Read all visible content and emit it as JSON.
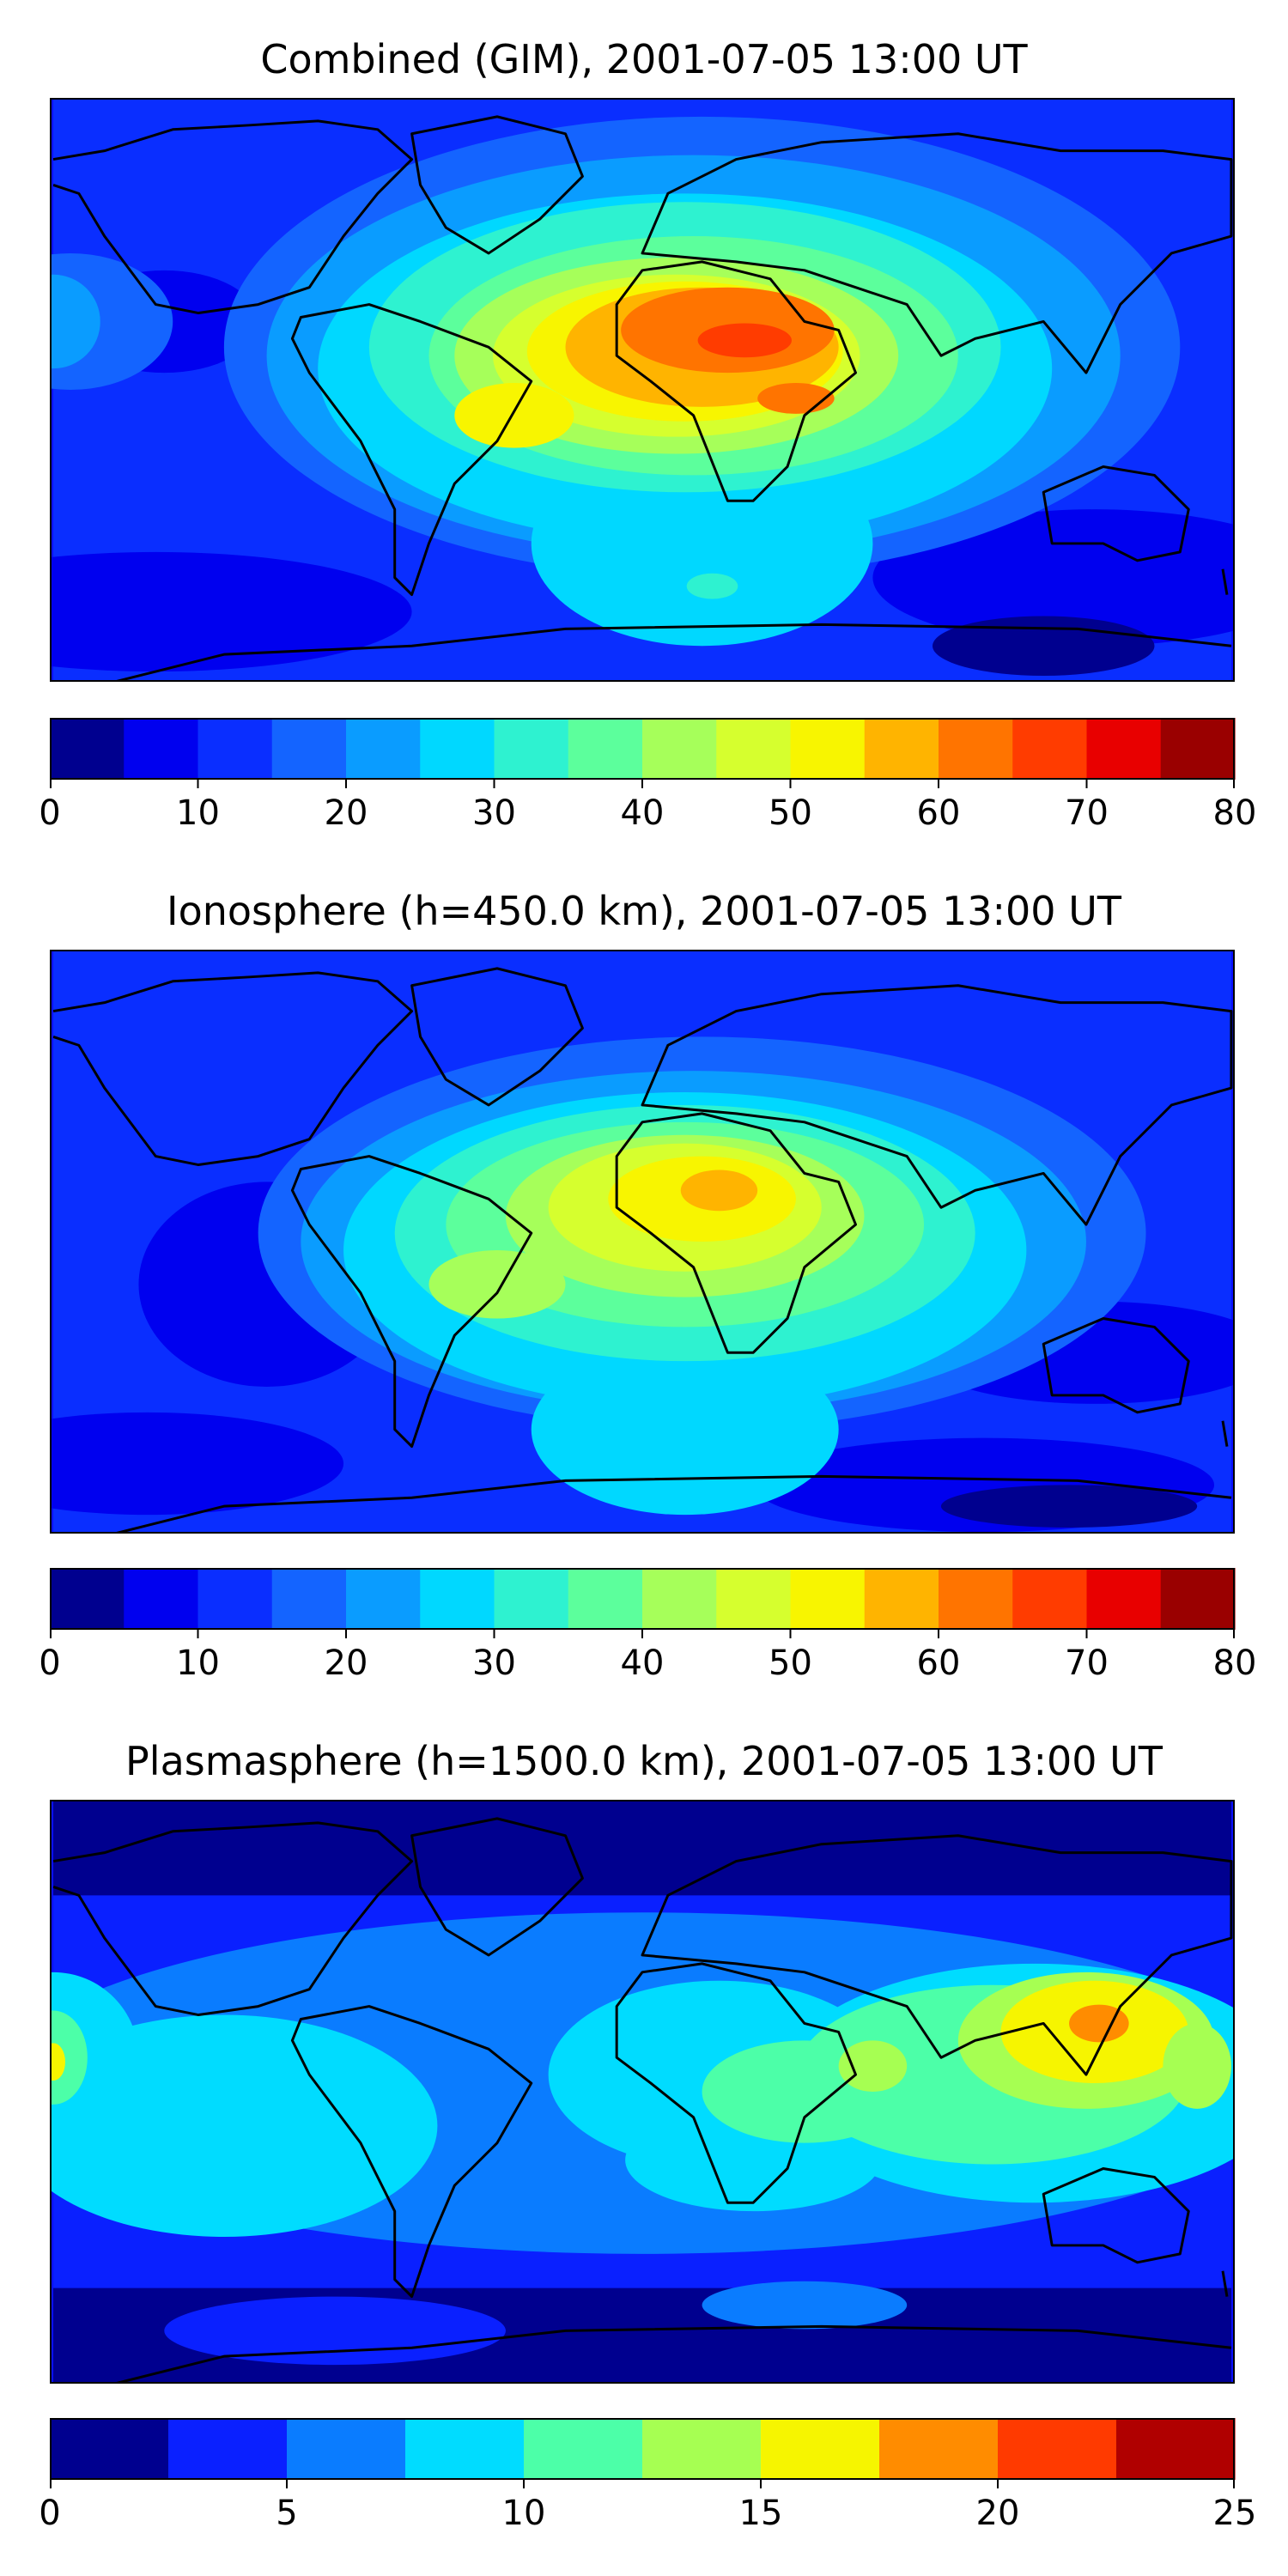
{
  "maps": [
    {
      "title": "Combined (GIM), 2001-07-05 13:00 UT",
      "colorbar": {
        "min": 0,
        "max": 80,
        "step": 5,
        "ticks": [
          "0",
          "10",
          "20",
          "30",
          "40",
          "50",
          "60",
          "70",
          "80"
        ]
      }
    },
    {
      "title": "Ionosphere  (h=450.0 km), 2001-07-05 13:00 UT",
      "colorbar": {
        "min": 0,
        "max": 80,
        "step": 5,
        "ticks": [
          "0",
          "10",
          "20",
          "30",
          "40",
          "50",
          "60",
          "70",
          "80"
        ]
      }
    },
    {
      "title": "Plasmasphere (h=1500.0 km), 2001-07-05 13:00 UT",
      "colorbar": {
        "min": 0,
        "max": 25,
        "step": 2.5,
        "ticks": [
          "0",
          "5",
          "10",
          "15",
          "20",
          "25"
        ]
      }
    }
  ],
  "colormaps": {
    "tec16": [
      "#00008f",
      "#0000ef",
      "#0a2eff",
      "#1464ff",
      "#0a9cff",
      "#00d8ff",
      "#2ef2d0",
      "#5cff9c",
      "#a6ff5a",
      "#d6ff2e",
      "#f8f500",
      "#ffb400",
      "#ff7400",
      "#ff3c00",
      "#e80000",
      "#9a0000"
    ],
    "tec10": [
      "#00008f",
      "#0a20ff",
      "#0a7cff",
      "#00dcff",
      "#4cffa8",
      "#a6ff52",
      "#f6f500",
      "#ff8c00",
      "#ff3a00",
      "#b00000"
    ]
  }
}
